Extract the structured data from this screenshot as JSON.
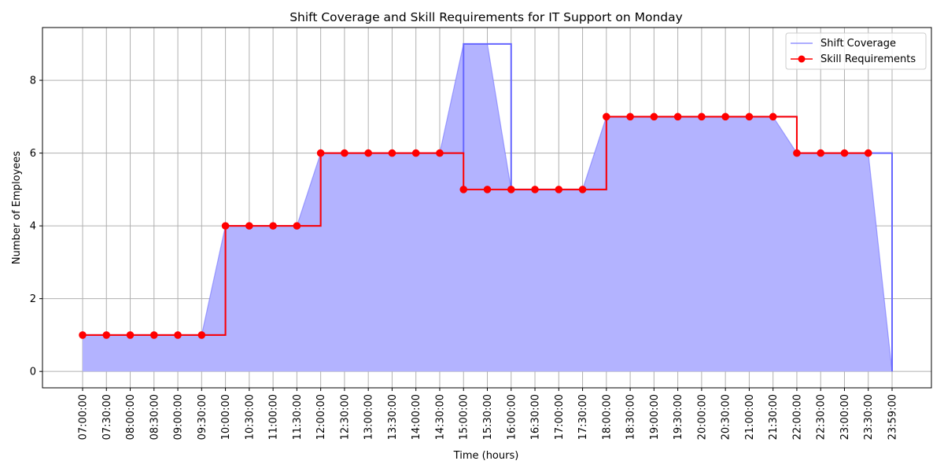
{
  "chart_data": {
    "type": "line",
    "title": "Shift Coverage and Skill Requirements for IT Support on Monday",
    "xlabel": "Time (hours)",
    "ylabel": "Number of Employees",
    "x": [
      "07:00:00",
      "07:30:00",
      "08:00:00",
      "08:30:00",
      "09:00:00",
      "09:30:00",
      "10:00:00",
      "10:30:00",
      "11:00:00",
      "11:30:00",
      "12:00:00",
      "12:30:00",
      "13:00:00",
      "13:30:00",
      "14:00:00",
      "14:30:00",
      "15:00:00",
      "15:30:00",
      "16:00:00",
      "16:30:00",
      "17:00:00",
      "17:30:00",
      "18:00:00",
      "18:30:00",
      "19:00:00",
      "19:30:00",
      "20:00:00",
      "20:30:00",
      "21:00:00",
      "21:30:00",
      "22:00:00",
      "22:30:00",
      "23:00:00",
      "23:30:00",
      "23:59:00"
    ],
    "yticks": [
      0,
      2,
      4,
      6,
      8
    ],
    "ylim": [
      -0.45,
      9.45
    ],
    "grid": true,
    "legend_position": "upper right",
    "series": [
      {
        "name": "Shift Coverage",
        "style": "step-post area",
        "color": "#6666ff",
        "fill_color": "#b3b3ff",
        "values": [
          1,
          1,
          1,
          1,
          1,
          1,
          4,
          4,
          4,
          4,
          6,
          6,
          6,
          6,
          6,
          6,
          9,
          9,
          5,
          5,
          5,
          5,
          7,
          7,
          7,
          7,
          7,
          7,
          7,
          7,
          6,
          6,
          6,
          6,
          0
        ]
      },
      {
        "name": "Skill Requirements",
        "style": "step-post with markers",
        "color": "#ff0000",
        "values": [
          1,
          1,
          1,
          1,
          1,
          1,
          4,
          4,
          4,
          4,
          6,
          6,
          6,
          6,
          6,
          6,
          5,
          5,
          5,
          5,
          5,
          5,
          7,
          7,
          7,
          7,
          7,
          7,
          7,
          7,
          6,
          6,
          6,
          6,
          null
        ]
      }
    ]
  }
}
